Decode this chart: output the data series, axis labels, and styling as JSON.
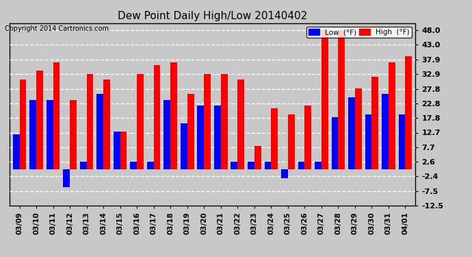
{
  "title": "Dew Point Daily High/Low 20140402",
  "copyright": "Copyright 2014 Cartronics.com",
  "legend_low": "Low  (°F)",
  "legend_high": "High  (°F)",
  "dates": [
    "03/09",
    "03/10",
    "03/11",
    "03/12",
    "03/13",
    "03/14",
    "03/15",
    "03/16",
    "03/17",
    "03/18",
    "03/19",
    "03/20",
    "03/21",
    "03/22",
    "03/23",
    "03/24",
    "03/25",
    "03/26",
    "03/27",
    "03/28",
    "03/29",
    "03/30",
    "03/31",
    "04/01"
  ],
  "high_values": [
    31.0,
    34.0,
    37.0,
    24.0,
    33.0,
    31.0,
    13.0,
    33.0,
    36.0,
    37.0,
    26.0,
    33.0,
    33.0,
    31.0,
    8.0,
    21.0,
    19.0,
    22.0,
    48.0,
    48.0,
    28.0,
    32.0,
    37.0,
    39.0
  ],
  "low_values": [
    12.0,
    24.0,
    24.0,
    -6.0,
    2.6,
    26.0,
    13.0,
    2.6,
    2.6,
    24.0,
    16.0,
    22.0,
    22.0,
    2.6,
    2.6,
    2.6,
    -3.0,
    2.6,
    2.6,
    18.0,
    25.0,
    19.0,
    26.0,
    19.0
  ],
  "bar_color_high": "#FF0000",
  "bar_color_low": "#0000FF",
  "background_color": "#C8C8C8",
  "plot_bg_color": "#C8C8C8",
  "grid_color": "#FFFFFF",
  "ylim_min": -12.5,
  "ylim_max": 50.5,
  "yticks": [
    -12.5,
    -7.5,
    -2.4,
    2.6,
    7.7,
    12.7,
    17.8,
    22.8,
    27.8,
    32.9,
    37.9,
    43.0,
    48.0
  ]
}
